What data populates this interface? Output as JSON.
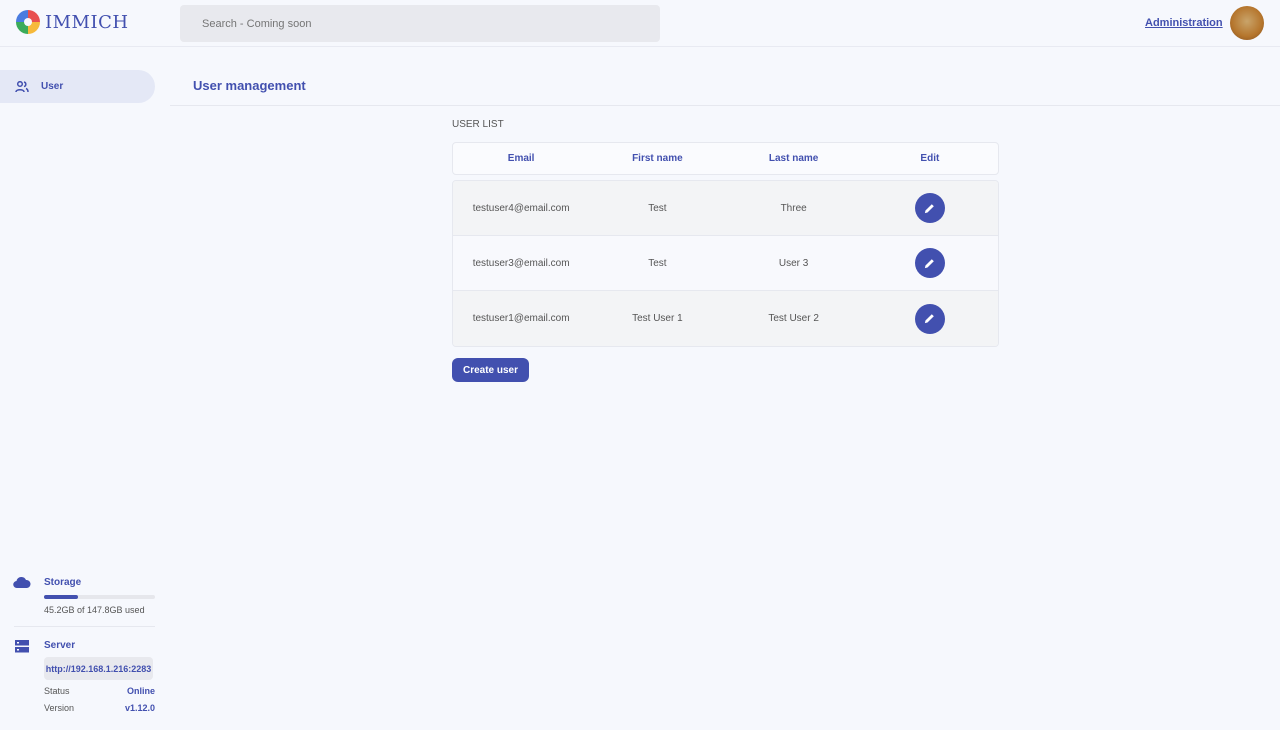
{
  "header": {
    "logo_text": "IMMICH",
    "search_placeholder": "Search - Coming soon",
    "admin_link": "Administration"
  },
  "sidebar": {
    "items": [
      {
        "label": "User",
        "icon": "users-icon"
      }
    ],
    "storage": {
      "title": "Storage",
      "used_text": "45.2GB of 147.8GB used",
      "used_fraction": 0.306
    },
    "server": {
      "title": "Server",
      "url": "http://192.168.1.216:2283",
      "status_label": "Status",
      "status_value": "Online",
      "version_label": "Version",
      "version_value": "v1.12.0"
    }
  },
  "main": {
    "title": "User management",
    "list_label": "USER LIST",
    "columns": [
      "Email",
      "First name",
      "Last name",
      "Edit"
    ],
    "rows": [
      {
        "email": "testuser4@email.com",
        "first": "Test",
        "last": "Three"
      },
      {
        "email": "testuser3@email.com",
        "first": "Test",
        "last": "User 3"
      },
      {
        "email": "testuser1@email.com",
        "first": "Test User 1",
        "last": "Test User 2"
      }
    ],
    "create_label": "Create user"
  },
  "colors": {
    "accent": "#4250af",
    "background": "#f6f8fd"
  }
}
